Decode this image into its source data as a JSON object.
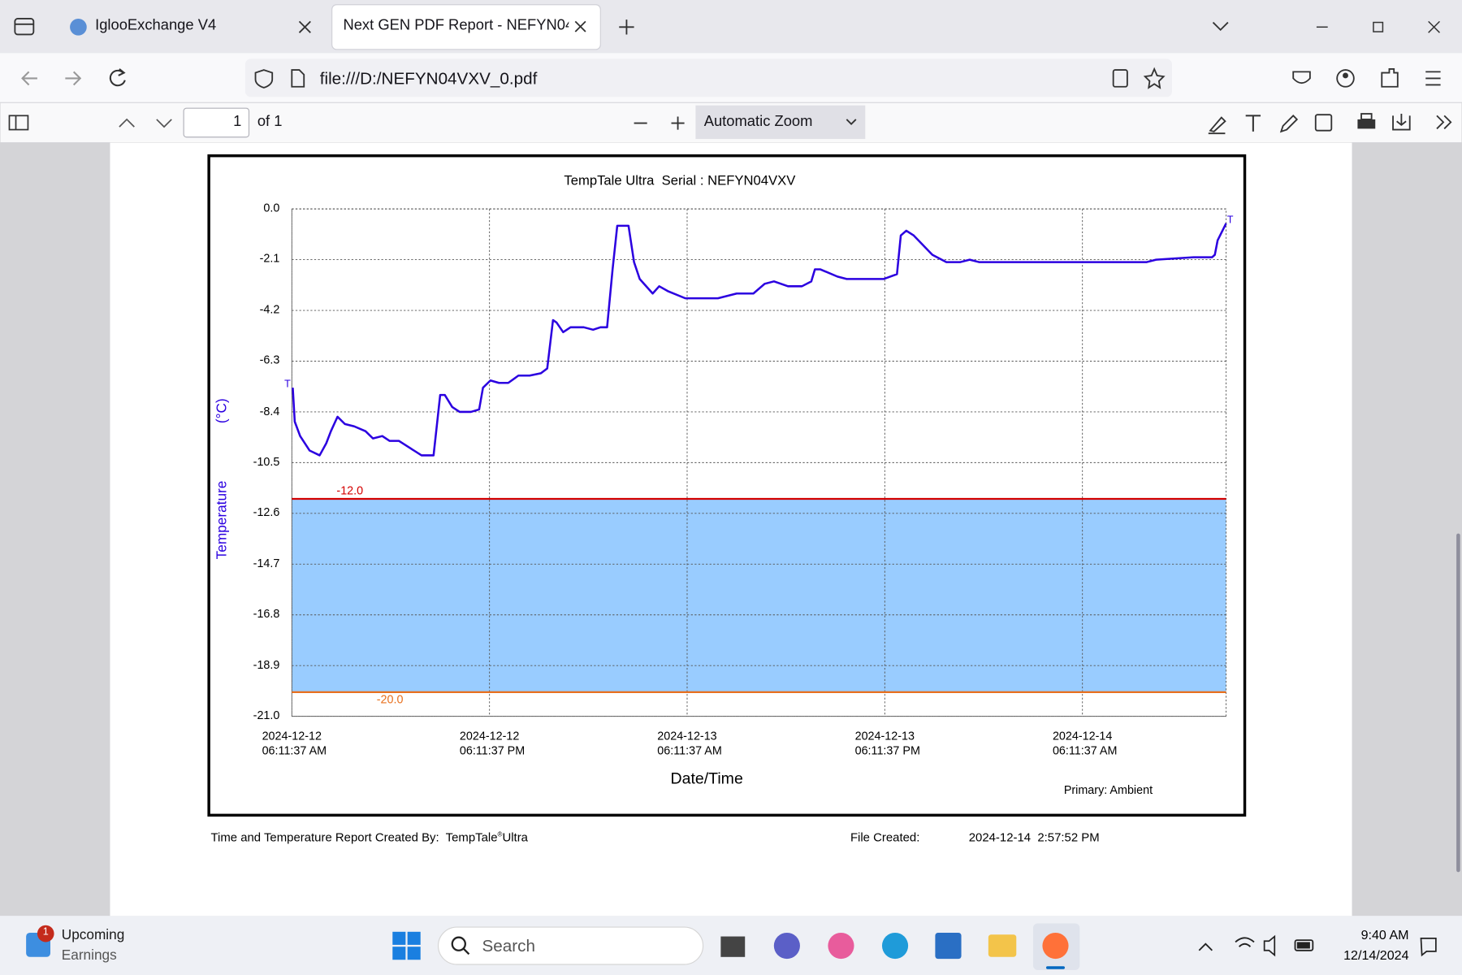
{
  "browser": {
    "tabs": [
      "IglooExchange V4",
      "Next GEN PDF Report - NEFYN04V"
    ],
    "url": "file:///D:/NEFYN04VXV_0.pdf"
  },
  "pdf_toolbar": {
    "page": "1",
    "page_count": "of 1",
    "zoom": "Automatic Zoom"
  },
  "chart_data": {
    "type": "line",
    "title": "TempTale Ultra  Serial : NEFYN04VXV",
    "y_label": "Temperature",
    "y_unit": "(°C)",
    "x_label": "Date/Time",
    "note": "Primary: Ambient",
    "color": "#2b00e0",
    "grid": true,
    "markers": [
      "T",
      "T"
    ],
    "band_color": "#99ccff",
    "limits": [
      {
        "value": -12,
        "label": "-12.0",
        "color": "#d40000"
      },
      {
        "value": -20,
        "label": "-20.0",
        "color": "#e8701e"
      }
    ],
    "xlim": [
      "2024-12-12T06:11:37",
      "2024-12-14T14:55"
    ],
    "xticks": [
      {
        "value": "2024-12-12T06:11:37",
        "label": "2024-12-12\n06:11:37 AM"
      },
      {
        "value": "2024-12-12T18:11:37",
        "label": "2024-12-12\n06:11:37 PM"
      },
      {
        "value": "2024-12-13T06:11:37",
        "label": "2024-12-13\n06:11:37 AM"
      },
      {
        "value": "2024-12-13T18:11:37",
        "label": "2024-12-13\n06:11:37 PM"
      },
      {
        "value": "2024-12-14T06:11:37",
        "label": "2024-12-14\n06:11:37 AM"
      }
    ],
    "ylim": [
      -21,
      0
    ],
    "yticks": [
      {
        "value": 0,
        "label": "0.0"
      },
      -2.1,
      -4.2,
      -6.3,
      -8.4,
      -10.5,
      -12.6,
      -14.7,
      -16.8,
      -18.9,
      {
        "value": -21,
        "label": "-21.0"
      }
    ],
    "x": [
      "2024-12-12T06:15",
      "2024-12-12T06:22",
      "2024-12-12T06:42",
      "2024-12-12T07:16",
      "2024-12-12T07:53",
      "2024-12-12T08:17",
      "2024-12-12T08:34",
      "2024-12-12T08:58",
      "2024-12-12T09:25",
      "2024-12-12T09:59",
      "2024-12-12T10:40",
      "2024-12-12T11:07",
      "2024-12-12T11:41",
      "2024-12-12T12:08",
      "2024-12-12T12:42",
      "2024-12-12T13:23",
      "2024-12-12T14:04",
      "2024-12-12T14:48",
      "2024-12-12T15:12",
      "2024-12-12T15:29",
      "2024-12-12T15:56",
      "2024-12-12T16:23",
      "2024-12-12T17:04",
      "2024-12-12T17:34",
      "2024-12-12T17:48",
      "2024-12-12T18:15",
      "2024-12-12T18:46",
      "2024-12-12T19:20",
      "2024-12-12T19:57",
      "2024-12-12T20:38",
      "2024-12-12T21:19",
      "2024-12-12T21:42",
      "2024-12-12T22:03",
      "2024-12-12T22:16",
      "2024-12-12T22:40",
      "2024-12-12T23:07",
      "2024-12-12T23:55",
      "2024-12-13T00:29",
      "2024-12-13T00:56",
      "2024-12-13T01:20",
      "2024-12-13T01:40",
      "2024-12-13T01:57",
      "2024-12-13T02:11",
      "2024-12-13T02:38",
      "2024-12-13T02:58",
      "2024-12-13T03:19",
      "2024-12-13T04:06",
      "2024-12-13T04:30",
      "2024-12-13T05:01",
      "2024-12-13T06:05",
      "2024-12-13T08:04",
      "2024-12-13T09:12",
      "2024-12-13T10:13",
      "2024-12-13T10:54",
      "2024-12-13T11:28",
      "2024-12-13T12:19",
      "2024-12-13T13:10",
      "2024-12-13T13:44",
      "2024-12-13T13:57",
      "2024-12-13T14:17",
      "2024-12-13T15:19",
      "2024-12-13T15:53",
      "2024-12-13T18:08",
      "2024-12-13T18:56",
      "2024-12-13T19:10",
      "2024-12-13T19:30",
      "2024-12-13T19:57",
      "2024-12-13T20:31",
      "2024-12-13T21:05",
      "2024-12-13T21:56",
      "2024-12-13T22:47",
      "2024-12-13T23:21",
      "2024-12-13T23:55",
      "2024-12-14T01:03",
      "2024-12-14T01:37",
      "2024-12-14T10:06",
      "2024-12-14T10:40",
      "2024-12-14T12:56",
      "2024-12-14T13:30",
      "2024-12-14T14:04",
      "2024-12-14T14:14",
      "2024-12-14T14:24",
      "2024-12-14T14:55"
    ],
    "values": [
      -7.4,
      -8.8,
      -9.4,
      -10.0,
      -10.2,
      -9.7,
      -9.2,
      -8.6,
      -8.9,
      -9.0,
      -9.2,
      -9.5,
      -9.4,
      -9.6,
      -9.6,
      -9.9,
      -10.2,
      -10.2,
      -7.7,
      -7.7,
      -8.2,
      -8.4,
      -8.4,
      -8.3,
      -7.4,
      -7.1,
      -7.2,
      -7.2,
      -6.9,
      -6.9,
      -6.8,
      -6.6,
      -4.6,
      -4.7,
      -5.1,
      -4.9,
      -4.9,
      -5.0,
      -4.9,
      -4.9,
      -2.5,
      -0.7,
      -0.7,
      -0.7,
      -2.2,
      -2.9,
      -3.5,
      -3.2,
      -3.4,
      -3.7,
      -3.7,
      -3.5,
      -3.5,
      -3.1,
      -3.0,
      -3.2,
      -3.2,
      -3.0,
      -2.5,
      -2.5,
      -2.8,
      -2.9,
      -2.9,
      -2.7,
      -1.1,
      -0.9,
      -1.1,
      -1.5,
      -1.9,
      -2.2,
      -2.2,
      -2.1,
      -2.2,
      -2.2,
      -2.2,
      -2.2,
      -2.1,
      -2.0,
      -2.0,
      -2.0,
      -1.9,
      -1.3,
      -0.6
    ]
  },
  "report_footer": {
    "created_by": "Time and Temperature Report Created By:  TempTale",
    "created_by_mark": "®",
    "created_by_product": "Ultra",
    "file_created_label": "File Created:",
    "file_created": "2024-12-14  2:57:52 PM"
  },
  "taskbar": {
    "widget_badge": "1",
    "widget_title": "Upcoming",
    "widget_subtitle": "Earnings",
    "search": "Search",
    "time": "9:40 AM",
    "date": "12/14/2024"
  }
}
